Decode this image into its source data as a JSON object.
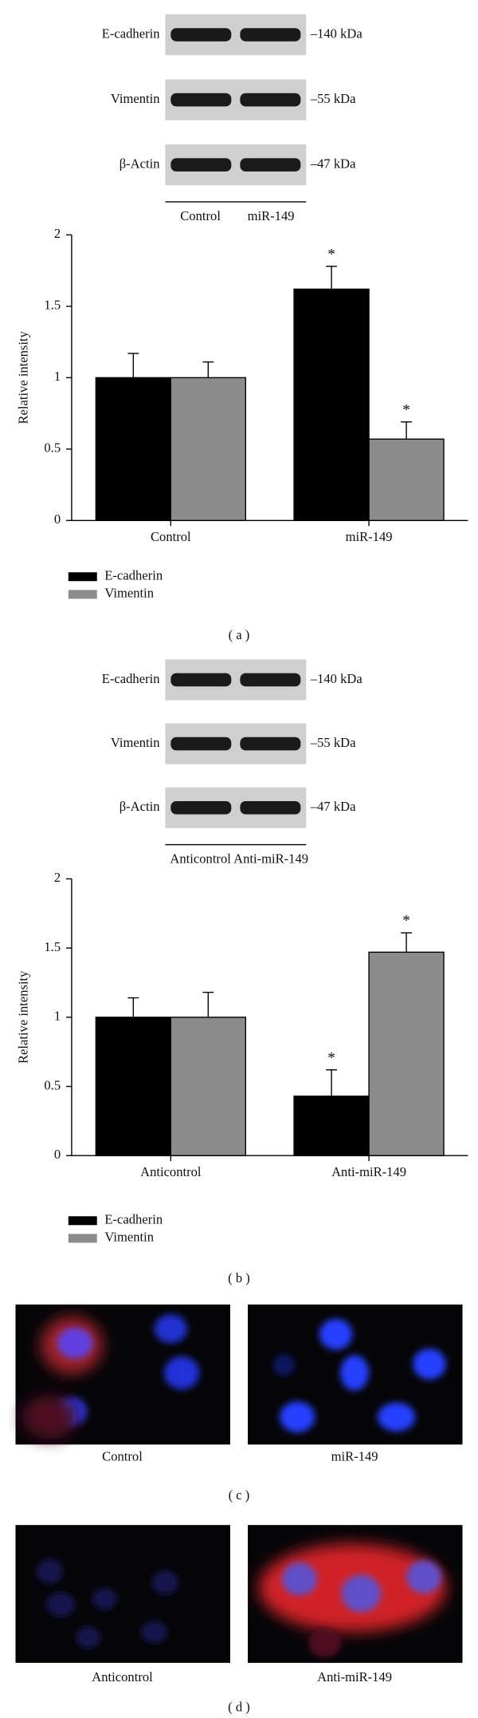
{
  "chart_data": [
    {
      "type": "bar",
      "ylabel": "Relative intensity",
      "categories": [
        "Control",
        "miR-149"
      ],
      "series": [
        {
          "name": "E-cadherin",
          "color": "#000000",
          "values": [
            1,
            1.62
          ],
          "errors": [
            0.17,
            0.16
          ]
        },
        {
          "name": "Vimentin",
          "color": "#8c8c8c",
          "values": [
            1,
            0.57
          ],
          "errors": [
            0.11,
            0.12
          ]
        }
      ],
      "annotations": [
        {
          "series": 0,
          "index": 1,
          "text": "*"
        },
        {
          "series": 1,
          "index": 1,
          "text": "*"
        }
      ],
      "ylim": [
        0,
        2
      ],
      "yticks": [
        0,
        0.5,
        1,
        1.5,
        2
      ],
      "caption": "( a )"
    },
    {
      "type": "bar",
      "ylabel": "Relative intensity",
      "categories": [
        "Anticontrol",
        "Anti-miR-149"
      ],
      "series": [
        {
          "name": "E-cadherin",
          "color": "#000000",
          "values": [
            1,
            0.43
          ],
          "errors": [
            0.14,
            0.19
          ]
        },
        {
          "name": "Vimentin",
          "color": "#8c8c8c",
          "values": [
            1,
            1.47
          ],
          "errors": [
            0.18,
            0.14
          ]
        }
      ],
      "annotations": [
        {
          "series": 0,
          "index": 1,
          "text": "*"
        },
        {
          "series": 1,
          "index": 1,
          "text": "*"
        }
      ],
      "ylim": [
        0,
        2
      ],
      "yticks": [
        0,
        0.5,
        1,
        1.5,
        2
      ],
      "caption": "( b )"
    }
  ],
  "blots": [
    {
      "rows": [
        "E-cadherin",
        "Vimentin",
        "β-Actin"
      ],
      "markers": [
        "–140 kDa",
        "–55 kDa",
        "–47 kDa"
      ],
      "lanes": [
        "Control",
        "miR-149"
      ]
    },
    {
      "rows": [
        "E-cadherin",
        "Vimentin",
        "β-Actin"
      ],
      "markers": [
        "–140 kDa",
        "–55 kDa",
        "–47 kDa"
      ],
      "lanes": [
        "Anticontrol",
        "Anti-miR-149"
      ]
    }
  ],
  "images": [
    {
      "labels": [
        "Control",
        "miR-149"
      ],
      "caption": "( c )"
    },
    {
      "labels": [
        "Anticontrol",
        "Anti-miR-149"
      ],
      "caption": "( d )"
    }
  ]
}
